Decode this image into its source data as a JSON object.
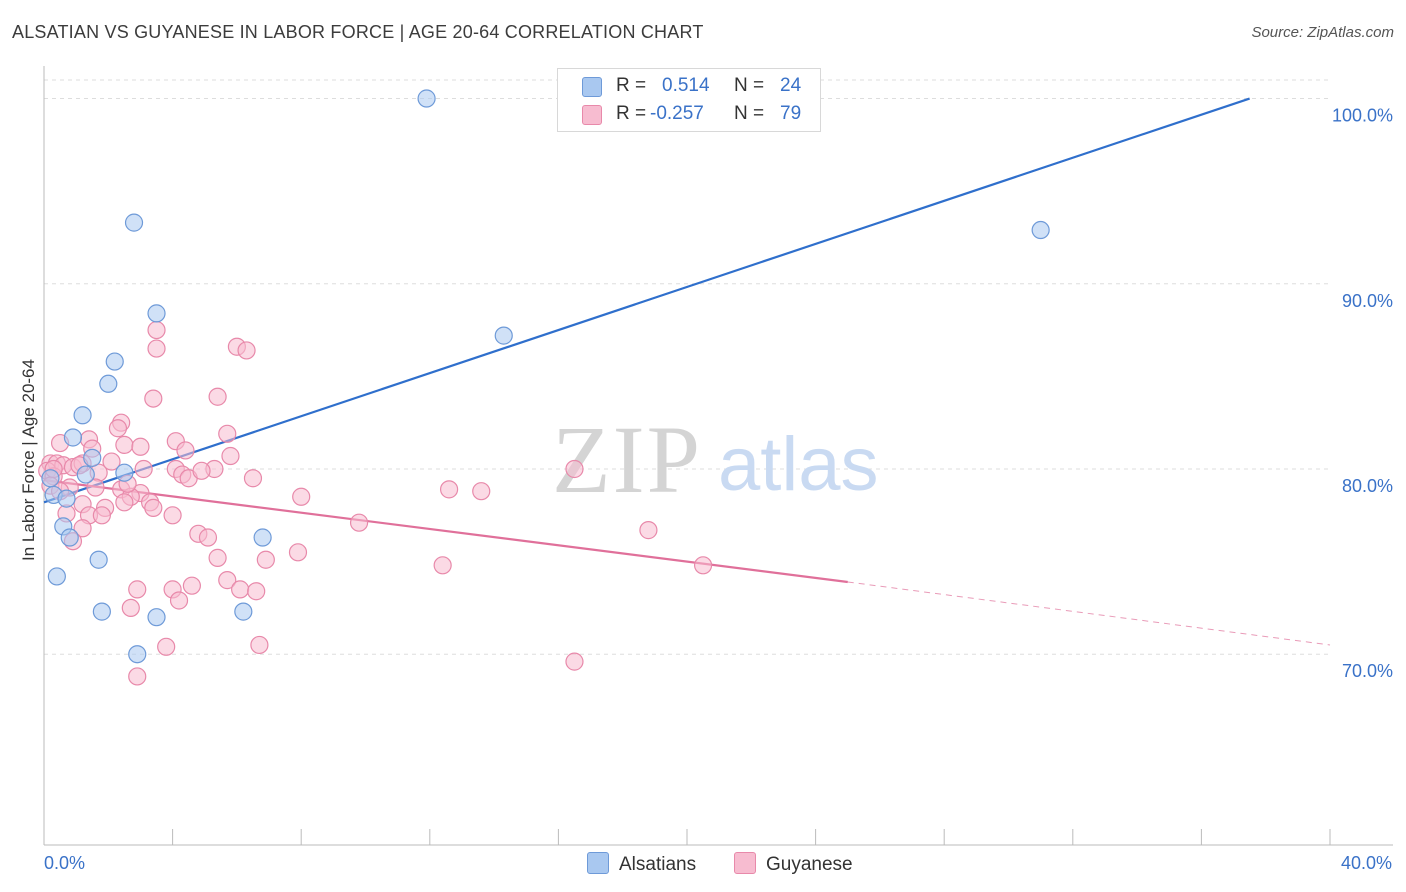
{
  "title": "ALSATIAN VS GUYANESE IN LABOR FORCE | AGE 20-64 CORRELATION CHART",
  "source": "Source: ZipAtlas.com",
  "watermark": {
    "zip": "ZIP",
    "atlas": "atlas"
  },
  "legend": {
    "rows": [
      {
        "r_label": "R =",
        "r_value": "0.514",
        "n_label": "N =",
        "n_value": "24"
      },
      {
        "r_label": "R =",
        "r_value": "-0.257",
        "n_label": "N =",
        "n_value": "79"
      }
    ],
    "bottom": [
      "Alsatians",
      "Guyanese"
    ]
  },
  "colors": {
    "blue_fill": "#a9c8f0",
    "blue_stroke": "#6e9ad8",
    "blue_line": "#2f6fcc",
    "pink_fill": "#f7bcd0",
    "pink_stroke": "#e889aa",
    "pink_line": "#e0709a",
    "axis_text": "#3a72c8",
    "grid": "#dddddd"
  },
  "chart_data": {
    "type": "scatter",
    "title": "ALSATIAN VS GUYANESE IN LABOR FORCE | AGE 20-64 CORRELATION CHART",
    "xlabel": "",
    "ylabel": "In Labor Force | Age 20-64",
    "xlim": [
      0,
      40
    ],
    "ylim": [
      59.7,
      101
    ],
    "x_tick_labels": [
      "0.0%",
      "40.0%"
    ],
    "y_ticks": [
      70,
      80,
      90,
      100
    ],
    "y_tick_labels": [
      "70.0%",
      "80.0%",
      "90.0%",
      "100.0%"
    ],
    "grid": true,
    "series": [
      {
        "name": "Alsatians",
        "r": 0.514,
        "n": 24,
        "trend": {
          "x": [
            0.0,
            37.5
          ],
          "y": [
            78.2,
            100.0
          ],
          "dashed_to": null
        },
        "points": [
          [
            11.9,
            100.0
          ],
          [
            2.8,
            93.3
          ],
          [
            3.5,
            88.4
          ],
          [
            14.3,
            87.2
          ],
          [
            31.0,
            92.9
          ],
          [
            2.2,
            85.8
          ],
          [
            2.0,
            84.6
          ],
          [
            1.2,
            82.9
          ],
          [
            0.9,
            81.7
          ],
          [
            1.5,
            80.6
          ],
          [
            2.5,
            79.8
          ],
          [
            1.3,
            79.7
          ],
          [
            0.2,
            79.5
          ],
          [
            0.3,
            78.6
          ],
          [
            0.7,
            78.4
          ],
          [
            0.6,
            76.9
          ],
          [
            0.8,
            76.3
          ],
          [
            1.7,
            75.1
          ],
          [
            0.4,
            74.2
          ],
          [
            1.8,
            72.3
          ],
          [
            3.5,
            72.0
          ],
          [
            6.2,
            72.3
          ],
          [
            6.8,
            76.3
          ],
          [
            2.9,
            70.0
          ]
        ]
      },
      {
        "name": "Guyanese",
        "r": -0.257,
        "n": 79,
        "trend": {
          "x": [
            0.0,
            25.0
          ],
          "y": [
            79.4,
            73.9
          ],
          "dashed_to": [
            40.0,
            70.5
          ]
        },
        "points": [
          [
            3.5,
            87.5
          ],
          [
            3.5,
            86.5
          ],
          [
            6.0,
            86.6
          ],
          [
            6.3,
            86.4
          ],
          [
            3.4,
            83.8
          ],
          [
            5.4,
            83.9
          ],
          [
            2.4,
            82.5
          ],
          [
            2.3,
            82.2
          ],
          [
            5.7,
            81.9
          ],
          [
            0.5,
            81.4
          ],
          [
            1.4,
            81.6
          ],
          [
            4.1,
            81.5
          ],
          [
            1.5,
            81.1
          ],
          [
            2.5,
            81.3
          ],
          [
            3.0,
            81.2
          ],
          [
            4.4,
            81.0
          ],
          [
            5.8,
            80.7
          ],
          [
            0.2,
            80.3
          ],
          [
            0.4,
            80.3
          ],
          [
            0.6,
            80.2
          ],
          [
            0.9,
            80.1
          ],
          [
            1.2,
            80.3
          ],
          [
            1.7,
            79.8
          ],
          [
            2.1,
            80.4
          ],
          [
            3.1,
            80.0
          ],
          [
            4.1,
            80.0
          ],
          [
            5.3,
            80.0
          ],
          [
            4.3,
            79.7
          ],
          [
            4.5,
            79.5
          ],
          [
            6.5,
            79.5
          ],
          [
            0.1,
            79.9
          ],
          [
            0.3,
            79.6
          ],
          [
            0.2,
            79.1
          ],
          [
            0.8,
            79.0
          ],
          [
            1.6,
            79.0
          ],
          [
            2.4,
            78.9
          ],
          [
            3.0,
            78.7
          ],
          [
            2.7,
            78.5
          ],
          [
            8.0,
            78.5
          ],
          [
            0.5,
            78.8
          ],
          [
            2.5,
            78.2
          ],
          [
            1.2,
            78.1
          ],
          [
            3.3,
            78.2
          ],
          [
            3.4,
            77.9
          ],
          [
            1.9,
            77.9
          ],
          [
            0.7,
            77.6
          ],
          [
            1.4,
            77.5
          ],
          [
            1.8,
            77.5
          ],
          [
            4.0,
            77.5
          ],
          [
            12.6,
            78.9
          ],
          [
            13.6,
            78.8
          ],
          [
            16.5,
            80.0
          ],
          [
            9.8,
            77.1
          ],
          [
            1.2,
            76.8
          ],
          [
            4.8,
            76.5
          ],
          [
            5.1,
            76.3
          ],
          [
            18.8,
            76.7
          ],
          [
            0.9,
            76.1
          ],
          [
            5.4,
            75.2
          ],
          [
            6.9,
            75.1
          ],
          [
            7.9,
            75.5
          ],
          [
            12.4,
            74.8
          ],
          [
            20.5,
            74.8
          ],
          [
            5.7,
            74.0
          ],
          [
            6.1,
            73.5
          ],
          [
            6.6,
            73.4
          ],
          [
            2.9,
            73.5
          ],
          [
            4.0,
            73.5
          ],
          [
            4.6,
            73.7
          ],
          [
            4.2,
            72.9
          ],
          [
            2.7,
            72.5
          ],
          [
            3.8,
            70.4
          ],
          [
            6.7,
            70.5
          ],
          [
            16.5,
            69.6
          ],
          [
            2.9,
            68.8
          ],
          [
            0.3,
            80.0
          ],
          [
            1.1,
            80.2
          ],
          [
            2.6,
            79.2
          ],
          [
            4.9,
            79.9
          ]
        ]
      }
    ]
  }
}
